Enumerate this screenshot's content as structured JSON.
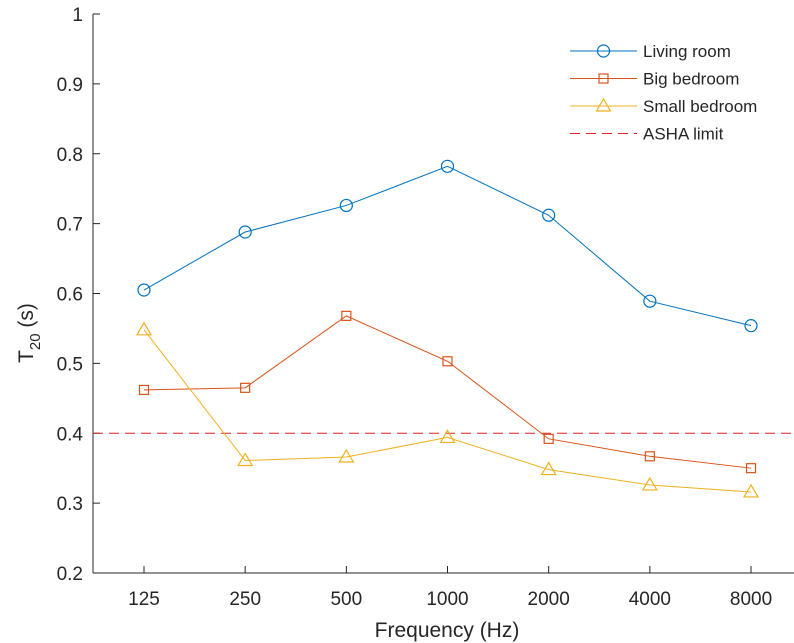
{
  "chart_data": {
    "type": "line",
    "xlabel": "Frequency (Hz)",
    "ylabel_main": "T",
    "ylabel_sub": "20",
    "ylabel_unit": " (s)",
    "x_categories": [
      "125",
      "250",
      "500",
      "1000",
      "2000",
      "4000",
      "8000"
    ],
    "ylim": [
      0.2,
      1.0
    ],
    "yticks": [
      "0.2",
      "0.3",
      "0.4",
      "0.5",
      "0.6",
      "0.7",
      "0.8",
      "0.9",
      "1"
    ],
    "grid": false,
    "legend_position": "top-right",
    "series": [
      {
        "name": "Living room",
        "color": "#0072BD",
        "marker": "circle",
        "values": [
          0.605,
          0.688,
          0.726,
          0.782,
          0.712,
          0.589,
          0.554
        ]
      },
      {
        "name": "Big bedroom",
        "color": "#D95319",
        "marker": "square",
        "values": [
          0.462,
          0.465,
          0.568,
          0.503,
          0.392,
          0.367,
          0.35
        ]
      },
      {
        "name": "Small bedroom",
        "color": "#EDB120",
        "marker": "triangle",
        "values": [
          0.548,
          0.361,
          0.366,
          0.394,
          0.348,
          0.326,
          0.316
        ]
      }
    ],
    "reference_line": {
      "name": "ASHA limit",
      "color": "#D62728",
      "style": "dashed",
      "value": 0.4
    }
  }
}
